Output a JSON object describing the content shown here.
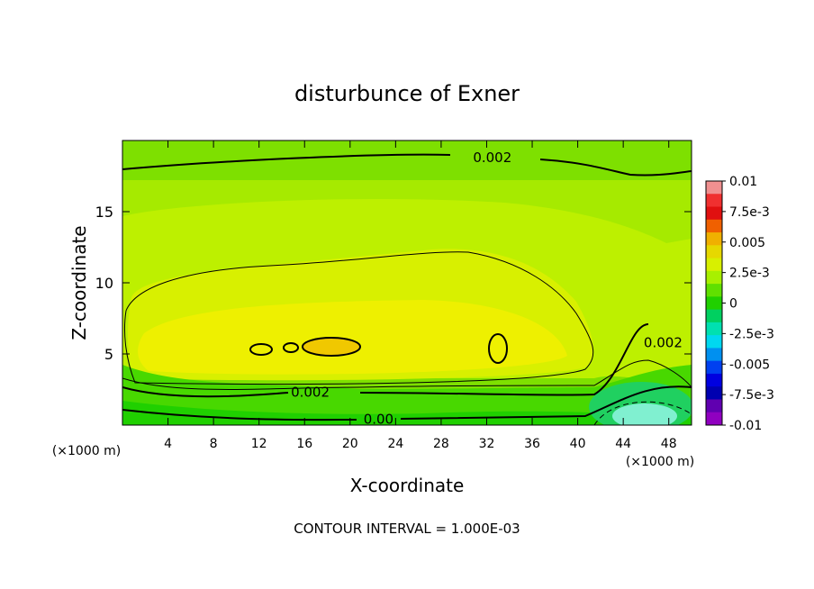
{
  "chart_data": {
    "type": "contour",
    "title": "disturbunce of Exner",
    "xlabel": "X-coordinate",
    "ylabel": "Z-coordinate",
    "x_unit": "(×1000 m)",
    "x_unit_right": "(×1000 m)",
    "xlim": [
      0,
      50
    ],
    "ylim": [
      0,
      20
    ],
    "x_ticks": [
      4,
      8,
      12,
      16,
      20,
      24,
      28,
      32,
      36,
      40,
      44,
      48
    ],
    "y_ticks": [
      5,
      10,
      15
    ],
    "contour_labels": [
      {
        "text": "0.002",
        "x": 32.5,
        "z": 18.8
      },
      {
        "text": "0.002",
        "x": 47.5,
        "z": 5.8
      },
      {
        "text": "0.002",
        "x": 16.5,
        "z": 2.3
      },
      {
        "text": "0.00",
        "x": 22.5,
        "z": 0.4
      }
    ],
    "colorbar": {
      "labels": [
        "0.01",
        "7.5e-3",
        "0.005",
        "2.5e-3",
        "0",
        "-2.5e-3",
        "-0.005",
        "-7.5e-3",
        "-0.01"
      ],
      "colors": [
        "#f09090",
        "#f03030",
        "#e01010",
        "#f06000",
        "#f0b000",
        "#e6d800",
        "#d8f000",
        "#a8f000",
        "#60e000",
        "#20d000",
        "#00d060",
        "#00e0b0",
        "#00d8f0",
        "#0090f0",
        "#0040f0",
        "#0000e0",
        "#0000b0",
        "#6000b0",
        "#9000c0"
      ]
    },
    "footer": "CONTOUR INTERVAL = 1.000E-03"
  }
}
